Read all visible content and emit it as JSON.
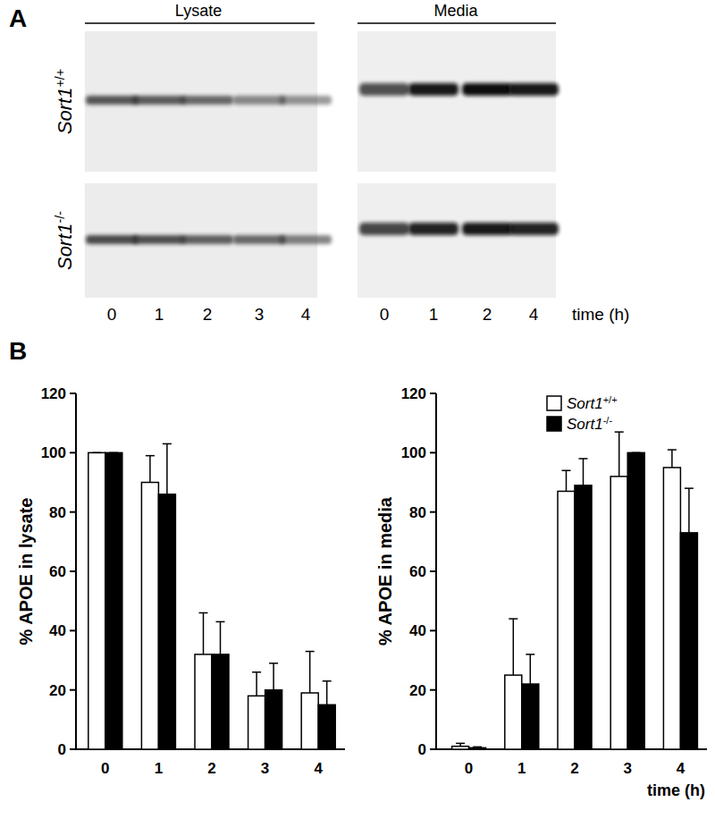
{
  "panel_a": {
    "label": "A",
    "lysate": "Lysate",
    "media": "Media",
    "rows": [
      "Sort1+/+",
      "Sort1-/-"
    ],
    "lysate_lanes": [
      0,
      1,
      2,
      3,
      4
    ],
    "media_lanes": [
      0,
      1,
      2,
      4
    ],
    "time_label": "time (h)"
  },
  "panel_b_label": "B",
  "chart_data": [
    {
      "type": "bar",
      "y_label": "% APOE in lysate",
      "categories": [
        "0",
        "1",
        "2",
        "3",
        "4"
      ],
      "ylim": [
        0,
        120
      ],
      "yticks": [
        0,
        20,
        40,
        60,
        80,
        100,
        120
      ],
      "series": [
        {
          "color": "#ffffff",
          "values": [
            100,
            90,
            32,
            18,
            19
          ],
          "errors": [
            0,
            9,
            14,
            8,
            14
          ]
        },
        {
          "color": "#000000",
          "values": [
            100,
            86,
            32,
            20,
            15
          ],
          "errors": [
            0,
            17,
            11,
            9,
            8
          ]
        }
      ]
    },
    {
      "type": "bar",
      "y_label": "% APOE in media",
      "x_label": "time (h)",
      "categories": [
        "0",
        "1",
        "2",
        "3",
        "4"
      ],
      "ylim": [
        0,
        120
      ],
      "yticks": [
        0,
        20,
        40,
        60,
        80,
        100,
        120
      ],
      "legend": "upper right",
      "series": [
        {
          "name": "Sort1+/+",
          "color": "#ffffff",
          "values": [
            1,
            25,
            87,
            92,
            95
          ],
          "errors": [
            1,
            19,
            7,
            15,
            6
          ]
        },
        {
          "name": "Sort1-/-",
          "color": "#000000",
          "values": [
            0.5,
            22,
            89,
            100,
            73
          ],
          "errors": [
            0.3,
            10,
            9,
            0,
            15
          ]
        }
      ]
    }
  ]
}
